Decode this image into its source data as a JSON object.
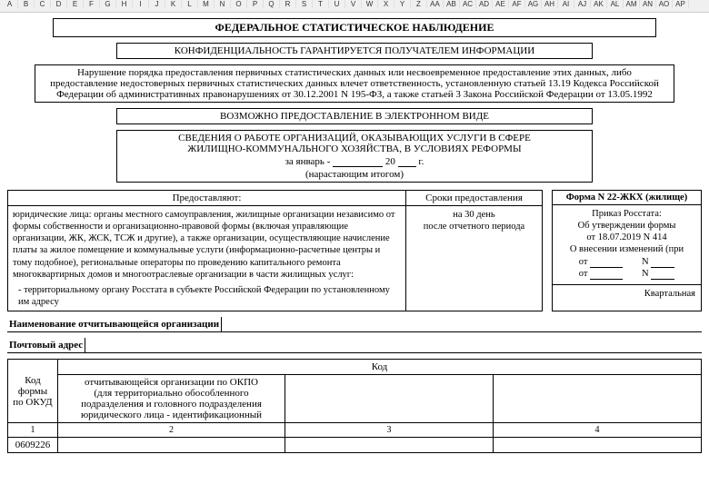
{
  "ruler": [
    "A",
    "B",
    "C",
    "D",
    "E",
    "F",
    "G",
    "H",
    "I",
    "J",
    "K",
    "L",
    "M",
    "N",
    "O",
    "P",
    "Q",
    "R",
    "S",
    "T",
    "U",
    "V",
    "W",
    "X",
    "Y",
    "Z",
    "AA",
    "AB",
    "AC",
    "AD",
    "AE",
    "AF",
    "AG",
    "AH",
    "AI",
    "AJ",
    "AK",
    "AL",
    "AM",
    "AN",
    "AO",
    "AP"
  ],
  "header": {
    "main_title": "ФЕДЕРАЛЬНОЕ СТАТИСТИЧЕСКОЕ НАБЛЮДЕНИЕ",
    "confidentiality": "КОНФИДЕНЦИАЛЬНОСТЬ ГАРАНТИРУЕТСЯ ПОЛУЧАТЕЛЕМ ИНФОРМАЦИИ",
    "violation": "Нарушение порядка предоставления первичных статистических данных или несвоевременное предоставление этих данных, либо предоставление недостоверных первичных статистических данных влечет ответственность, установленную статьей 13.19 Кодекса Российской Федерации об административных правонарушениях от 30.12.2001 N 195-ФЗ, а также статьей 3 Закона Российской Федерации от 13.05.1992",
    "electronic": "ВОЗМОЖНО ПРЕДОСТАВЛЕНИЕ В ЭЛЕКТРОННОМ ВИДЕ",
    "svedenia_l1": "СВЕДЕНИЯ О РАБОТЕ ОРГАНИЗАЦИЙ, ОКАЗЫВАЮЩИХ УСЛУГИ В СФЕРЕ",
    "svedenia_l2": "ЖИЛИЩНО-КОММУНАЛЬНОГО ХОЗЯЙСТВА, В УСЛОВИЯХ РЕФОРМЫ",
    "period_prefix": "за январь -",
    "period_year_prefix": "20",
    "period_year_suffix": "г.",
    "period_note": "(нарастающим итогом)"
  },
  "columns": {
    "left_head": "Предоставляют:",
    "left_body": "юридические лица: органы местного самоуправления, жилищные организации независимо от формы собственности и организационно-правовой формы (включая управляющие организации, ЖК, ЖСК, ТСЖ и другие), а также организации, осуществляющие начисление платы за жилое помещение и коммунальные услуги (информационно-расчетные центры и тому подобное), региональные операторы по проведению капитального ремонта многоквартирных домов и многоотраслевые организации в части жилищных услуг:",
    "left_sub": "- территориальному органу Росстата в субъекте Российской Федерации   по установленному им адресу",
    "mid_head": "Сроки предоставления",
    "mid_l1": "на 30 день",
    "mid_l2": "после отчетного периода",
    "right_head": "Форма N 22-ЖКХ (жилище)",
    "right_l1": "Приказ Росстата:",
    "right_l2": "Об утверждении формы",
    "right_l3": "от 18.07.2019 N 414",
    "right_l4": "О внесении изменений (при",
    "right_ot": "от",
    "right_n": "N",
    "right_quarterly": "Квартальная"
  },
  "fields": {
    "org_label": "Наименование отчитывающейся организации",
    "org_value": "",
    "addr_label": "Почтовый адрес",
    "addr_value": ""
  },
  "table": {
    "h_okud_l1": "Код",
    "h_okud_l2": "формы",
    "h_okud_l3": "по ОКУД",
    "h_code": "Код",
    "h2_l1": "отчитывающейся организации по ОКПО",
    "h2_l2": "(для территориально обособленного",
    "h2_l3": "подразделения и головного подразделения",
    "h2_l4": "юридического лица - идентификационный",
    "n1": "1",
    "n2": "2",
    "n3": "3",
    "n4": "4",
    "okud_code": "0609226"
  }
}
